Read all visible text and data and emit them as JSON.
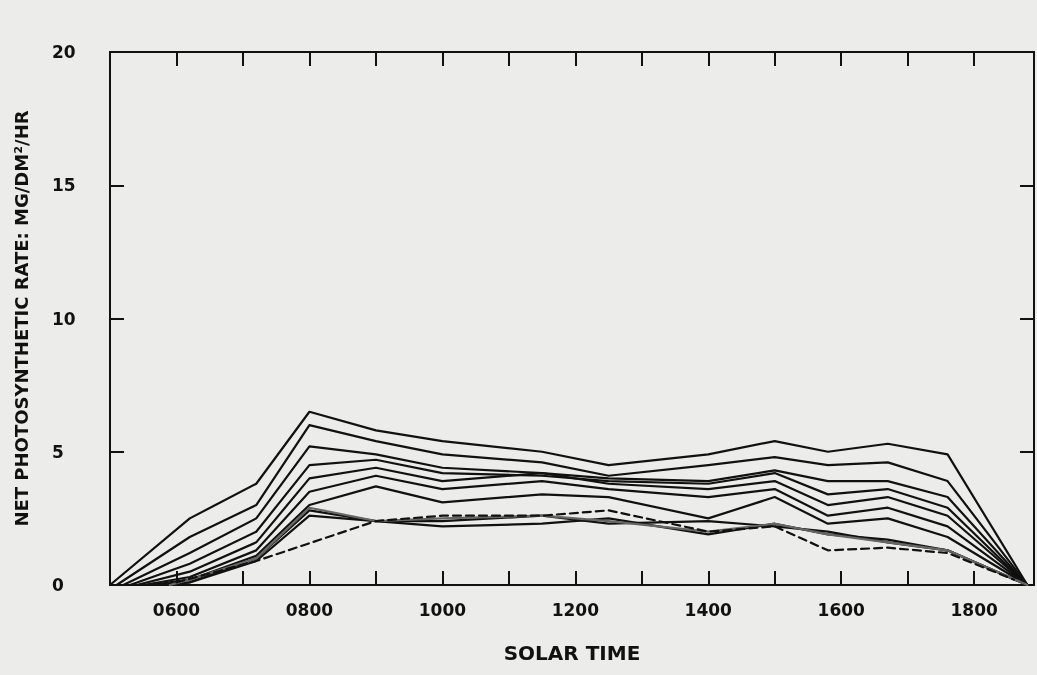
{
  "chart_data": {
    "type": "line",
    "xlabel": "SOLAR TIME",
    "ylabel": "NET PHOTOSYNTHETIC RATE: MG/DM²/HR",
    "xlim": [
      500,
      1890
    ],
    "xticks": [
      {
        "value": 600,
        "label": "0600"
      },
      {
        "value": 700,
        "label": null
      },
      {
        "value": 800,
        "label": "0800"
      },
      {
        "value": 900,
        "label": null
      },
      {
        "value": 1000,
        "label": "1000"
      },
      {
        "value": 1100,
        "label": null
      },
      {
        "value": 1200,
        "label": "1200"
      },
      {
        "value": 1300,
        "label": null
      },
      {
        "value": 1400,
        "label": "1400"
      },
      {
        "value": 1500,
        "label": null
      },
      {
        "value": 1600,
        "label": "1600"
      },
      {
        "value": 1700,
        "label": null
      },
      {
        "value": 1800,
        "label": "1800"
      }
    ],
    "ylim": [
      0,
      20
    ],
    "yticks": [
      0,
      5,
      10,
      15,
      20
    ],
    "grid": false,
    "marker": "none",
    "series": [
      {
        "color": "#111111",
        "line_style": "solid",
        "x": [
          500,
          620,
          720,
          800,
          900,
          1000,
          1150,
          1250,
          1400,
          1500,
          1580,
          1670,
          1760,
          1880
        ],
        "values": [
          0,
          2.5,
          3.8,
          6.5,
          5.8,
          5.4,
          5.0,
          4.5,
          4.9,
          5.4,
          5.0,
          5.3,
          4.9,
          0
        ]
      },
      {
        "color": "#111111",
        "line_style": "solid",
        "x": [
          510,
          620,
          720,
          800,
          900,
          1000,
          1150,
          1250,
          1400,
          1500,
          1580,
          1670,
          1760,
          1880
        ],
        "values": [
          0,
          1.8,
          3.0,
          6.0,
          5.4,
          4.9,
          4.6,
          4.1,
          4.5,
          4.8,
          4.5,
          4.6,
          3.9,
          0
        ]
      },
      {
        "color": "#111111",
        "line_style": "solid",
        "x": [
          520,
          620,
          720,
          800,
          900,
          1000,
          1150,
          1250,
          1400,
          1500,
          1580,
          1670,
          1760,
          1880
        ],
        "values": [
          0,
          1.2,
          2.5,
          5.2,
          4.9,
          4.4,
          4.2,
          4.0,
          3.9,
          4.3,
          3.9,
          3.9,
          3.3,
          0
        ]
      },
      {
        "color": "#111111",
        "line_style": "solid",
        "x": [
          530,
          620,
          720,
          800,
          900,
          1000,
          1150,
          1250,
          1400,
          1500,
          1580,
          1670,
          1760,
          1880
        ],
        "values": [
          0,
          0.8,
          2.0,
          4.5,
          4.7,
          4.2,
          4.1,
          3.9,
          3.8,
          4.2,
          3.4,
          3.6,
          2.9,
          0
        ]
      },
      {
        "color": "#111111",
        "line_style": "solid",
        "x": [
          540,
          620,
          720,
          800,
          900,
          1000,
          1150,
          1250,
          1400,
          1500,
          1580,
          1670,
          1760,
          1880
        ],
        "values": [
          0,
          0.5,
          1.6,
          4.0,
          4.4,
          3.9,
          4.2,
          3.8,
          3.6,
          3.9,
          3.0,
          3.3,
          2.6,
          0
        ]
      },
      {
        "color": "#111111",
        "line_style": "solid",
        "x": [
          550,
          620,
          720,
          800,
          900,
          1000,
          1150,
          1250,
          1400,
          1500,
          1580,
          1670,
          1760,
          1880
        ],
        "values": [
          0,
          0.3,
          1.3,
          3.5,
          4.1,
          3.6,
          3.9,
          3.6,
          3.3,
          3.6,
          2.6,
          2.9,
          2.2,
          0
        ]
      },
      {
        "color": "#111111",
        "line_style": "solid",
        "x": [
          560,
          620,
          720,
          800,
          900,
          1000,
          1150,
          1250,
          1400,
          1500,
          1580,
          1670,
          1760,
          1880
        ],
        "values": [
          0,
          0.2,
          1.1,
          3.0,
          3.7,
          3.1,
          3.4,
          3.3,
          2.5,
          3.3,
          2.3,
          2.5,
          1.8,
          0
        ]
      },
      {
        "color": "#111111",
        "line_style": "solid",
        "x": [
          570,
          620,
          720,
          800,
          900,
          1000,
          1150,
          1250,
          1400,
          1500,
          1580,
          1670,
          1760,
          1880
        ],
        "values": [
          0,
          0.1,
          1.0,
          2.8,
          2.4,
          2.4,
          2.6,
          2.3,
          2.4,
          2.2,
          2.0,
          1.6,
          1.3,
          0
        ]
      },
      {
        "color": "#111111",
        "line_style": "solid",
        "x": [
          580,
          620,
          720,
          800,
          900,
          1000,
          1150,
          1250,
          1400,
          1500,
          1580,
          1670,
          1760,
          1880
        ],
        "values": [
          0,
          0.1,
          0.9,
          2.6,
          2.4,
          2.2,
          2.3,
          2.5,
          1.9,
          2.3,
          1.9,
          1.7,
          1.3,
          0
        ]
      },
      {
        "color": "#666666",
        "line_style": "solid",
        "x": [
          590,
          620,
          720,
          800,
          900,
          1000,
          1150,
          1250,
          1400,
          1500,
          1580,
          1670,
          1760,
          1880
        ],
        "values": [
          0,
          0.2,
          1.0,
          2.9,
          2.4,
          2.5,
          2.6,
          2.4,
          2.0,
          2.3,
          1.9,
          1.6,
          1.3,
          0
        ]
      },
      {
        "color": "#111111",
        "line_style": "dashed",
        "x": [
          600,
          720,
          900,
          1000,
          1150,
          1250,
          1400,
          1500,
          1580,
          1670,
          1760,
          1860
        ],
        "values": [
          0.1,
          0.9,
          2.4,
          2.6,
          2.6,
          2.8,
          2.0,
          2.2,
          1.3,
          1.4,
          1.2,
          0.2
        ]
      }
    ]
  }
}
